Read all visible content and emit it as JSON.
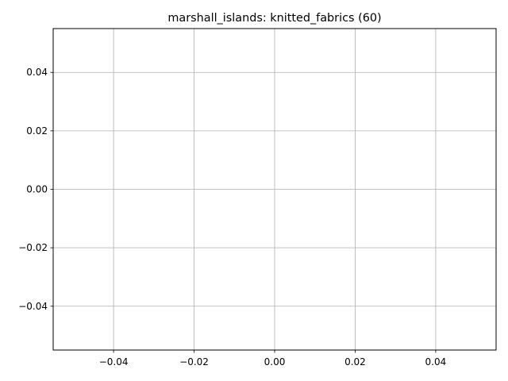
{
  "chart_data": {
    "type": "line",
    "title": "marshall_islands: knitted_fabrics (60)",
    "xlabel": "",
    "ylabel": "",
    "xlim": [
      -0.055,
      0.055
    ],
    "ylim": [
      -0.055,
      0.055
    ],
    "x_ticks": [
      -0.04,
      -0.02,
      0.0,
      0.02,
      0.04
    ],
    "x_tick_labels": [
      "−0.04",
      "−0.02",
      "0.00",
      "0.02",
      "0.04"
    ],
    "y_ticks": [
      -0.04,
      -0.02,
      0.0,
      0.02,
      0.04
    ],
    "y_tick_labels": [
      "−0.04",
      "−0.02",
      "0.00",
      "0.02",
      "0.04"
    ],
    "grid": true,
    "series": [],
    "colors": {
      "grid": "#b0b0b0",
      "axes": "#000000",
      "background": "#ffffff"
    }
  }
}
